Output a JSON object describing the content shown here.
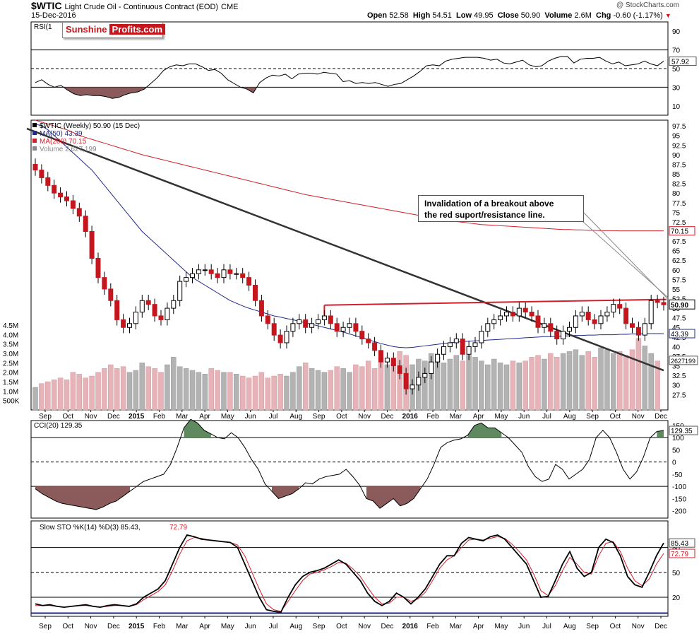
{
  "header": {
    "title": "$WTIC",
    "subtitle": "Light Crude Oil - Continuous Contract (EOD)",
    "exchange": "CME",
    "date": "15-Dec-2016",
    "copyright": "@ StockCharts.com",
    "open_label": "Open",
    "open": "52.58",
    "high_label": "High",
    "high": "54.51",
    "low_label": "Low",
    "low": "49.95",
    "close_label": "Close",
    "close": "50.90",
    "volume_label": "Volume",
    "volume": "2.6M",
    "chg_label": "Chg",
    "chg": "-0.60 (-1.17%)"
  },
  "logo": {
    "part1": "Sunshine",
    "part2": "Profits.com"
  },
  "annotation": {
    "line1": "Invalidation of  a breakout above",
    "line2": "the red suport/resistance line."
  },
  "colors": {
    "up": "#ffffff",
    "down": "#c4161c",
    "ma50": "#1f2a8a",
    "ma200": "#d11f2b",
    "trend": "#333333",
    "resistance": "#d11f2b",
    "fill_pos": "#5f8a5f",
    "fill_neg": "#8b5a5a",
    "vol_up": "#b3b3b3",
    "vol_down": "#e6b3b8"
  },
  "chart_data": [
    {
      "panel": "rsi",
      "type": "line",
      "title": "RSI(14) 57.92",
      "title_short": "RSI(1",
      "ylim": [
        0,
        100
      ],
      "yticks": [
        10,
        30,
        50,
        70,
        90
      ],
      "lines": [
        30,
        50,
        70
      ],
      "last": "57.92",
      "values": [
        35,
        38,
        33,
        30,
        32,
        27,
        23,
        21,
        22,
        21,
        21,
        20,
        18,
        19,
        22,
        24,
        25,
        28,
        34,
        40,
        48,
        52,
        54,
        53,
        55,
        55,
        52,
        48,
        49,
        45,
        38,
        34,
        30,
        28,
        24,
        35,
        40,
        43,
        42,
        44,
        39,
        44,
        45,
        45,
        44,
        46,
        45,
        44,
        36,
        37,
        34,
        35,
        34,
        35,
        33,
        31,
        33,
        34,
        38,
        42,
        47,
        53,
        54,
        53,
        58,
        60,
        61,
        62,
        62,
        62,
        61,
        59,
        60,
        56,
        55,
        57,
        59,
        54,
        52,
        53,
        58,
        61,
        63,
        63,
        56,
        60,
        61,
        61,
        62,
        58,
        55,
        57,
        53,
        54,
        55,
        58,
        55,
        53,
        57.92
      ]
    },
    {
      "panel": "price",
      "type": "candlestick",
      "title": "$WTIC (Weekly) 50.90 (15 Dec)",
      "ylim": [
        23.5,
        99
      ],
      "yticks": [
        27.5,
        30,
        32.5,
        35,
        37.5,
        40,
        42.5,
        45,
        47.5,
        50,
        52.5,
        55,
        57.5,
        60,
        62.5,
        65,
        67.5,
        70,
        72.5,
        75,
        77.5,
        80,
        82.5,
        85,
        87.5,
        90,
        92.5,
        95,
        97.5
      ],
      "legend": [
        {
          "label": "$WTIC (Weekly) 50.90 (15 Dec)",
          "color": "#000000"
        },
        {
          "label": "MA(50) 43.39",
          "color": "#1f2a8a"
        },
        {
          "label": "MA(200) 70.15",
          "color": "#d11f2b"
        },
        {
          "label": "Volume 2,627,199",
          "color": "#888888"
        }
      ],
      "last_close_label": "50.90",
      "ma50_label": "43.39",
      "ma200_label": "70.15",
      "closes": [
        86,
        84,
        82,
        80,
        79,
        78,
        76,
        74,
        70,
        63,
        58,
        55,
        52,
        47,
        45,
        46,
        49,
        52,
        51,
        48,
        47,
        50,
        52,
        57,
        58,
        59,
        60,
        60,
        59,
        58,
        60,
        59,
        59,
        58,
        56,
        52,
        48,
        46,
        43,
        41,
        44,
        46,
        47,
        45,
        46,
        47,
        48,
        46,
        44,
        45,
        46,
        44,
        42,
        41,
        39,
        36,
        37,
        35,
        33,
        29,
        30,
        32,
        33,
        36,
        38,
        40,
        41,
        42,
        38,
        40,
        41,
        44,
        46,
        47,
        48,
        49,
        48,
        50,
        49,
        48,
        45,
        46,
        44,
        42,
        44,
        45,
        48,
        49,
        47,
        46,
        48,
        49,
        51,
        50,
        46,
        45,
        43,
        46,
        52,
        51.5,
        50.9
      ],
      "ma50": [
        98,
        97.5,
        96.5,
        95,
        93.5,
        92,
        90.5,
        89,
        87.5,
        86,
        84,
        82,
        80,
        78,
        76,
        74,
        72,
        70,
        68.5,
        67,
        65.5,
        64,
        62.5,
        61,
        59.5,
        58,
        57,
        56,
        55,
        54,
        53,
        52,
        51.3,
        50.6,
        50,
        49.5,
        49,
        48.5,
        48,
        47.7,
        47.3,
        47,
        46.6,
        46.2,
        45.8,
        45.4,
        45,
        44.6,
        44.2,
        43.8,
        43.3,
        42.8,
        42.3,
        41.8,
        41.3,
        40.8,
        40.4,
        40,
        39.8,
        39.7,
        39.8,
        40,
        40.2,
        40.4,
        40.6,
        40.8,
        41,
        41.2,
        41.3,
        41.4,
        41.5,
        41.6,
        41.7,
        41.8,
        41.9,
        42,
        42.1,
        42.2,
        42.3,
        42.4,
        42.5,
        42.6,
        42.6,
        42.7,
        42.8,
        42.8,
        42.9,
        42.9,
        43,
        43,
        43.1,
        43.1,
        43.1,
        43.2,
        43.2,
        43.3,
        43.3,
        43.39,
        43.39,
        43.39,
        43.39
      ],
      "ma200": [
        99,
        98.5,
        98,
        97.5,
        97,
        96.5,
        95.8,
        95,
        94.5,
        94,
        93.5,
        93,
        92.5,
        92,
        91.5,
        91,
        90.5,
        90,
        89.6,
        89.2,
        88.8,
        88.4,
        88,
        87.6,
        87.2,
        86.8,
        86.4,
        86,
        85.6,
        85.2,
        84.8,
        84.4,
        84,
        83.6,
        83.2,
        82.8,
        82.4,
        82,
        81.6,
        81.2,
        80.8,
        80.4,
        80,
        79.6,
        79.3,
        79,
        78.7,
        78.4,
        78.1,
        77.8,
        77.5,
        77.2,
        76.9,
        76.6,
        76.3,
        76,
        75.7,
        75.4,
        75.1,
        74.8,
        74.5,
        74.2,
        73.9,
        73.6,
        73.3,
        73,
        72.8,
        72.6,
        72.4,
        72.2,
        72,
        71.8,
        71.7,
        71.6,
        71.5,
        71.4,
        71.3,
        71.2,
        71.1,
        71,
        70.9,
        70.8,
        70.7,
        70.6,
        70.5,
        70.5,
        70.4,
        70.4,
        70.3,
        70.3,
        70.2,
        70.2,
        70.2,
        70.15,
        70.15,
        70.15,
        70.15,
        70.15,
        70.15,
        70.15,
        70.15
      ]
    },
    {
      "panel": "volume",
      "type": "bar",
      "ylim": [
        0,
        4.5
      ],
      "unit": "M",
      "ytick_labels": [
        "500K",
        "1.0M",
        "1.5M",
        "2.0M",
        "2.5M",
        "3.0M",
        "3.5M",
        "4.0M",
        "4.5M"
      ],
      "last_label": "2627199",
      "values": [
        1.2,
        1.4,
        1.5,
        1.6,
        1.7,
        1.6,
        2.0,
        1.9,
        1.7,
        1.8,
        2.0,
        2.2,
        2.4,
        2.2,
        2.3,
        2.0,
        2.1,
        2.5,
        2.3,
        2.2,
        2.0,
        2.4,
        2.8,
        2.3,
        2.2,
        2.1,
        2.0,
        1.9,
        2.2,
        2.1,
        2.0,
        2.0,
        1.9,
        1.8,
        1.7,
        1.8,
        2.0,
        1.7,
        1.8,
        1.9,
        1.8,
        2.0,
        2.3,
        2.5,
        2.2,
        2.1,
        2.0,
        2.1,
        2.3,
        2.2,
        2.0,
        2.4,
        2.3,
        2.6,
        2.2,
        2.8,
        2.4,
        2.7,
        3.1,
        2.9,
        2.4,
        2.7,
        2.6,
        3.0,
        2.8,
        2.5,
        2.7,
        2.9,
        2.6,
        2.9,
        2.8,
        2.6,
        2.4,
        2.7,
        2.5,
        2.4,
        2.6,
        2.5,
        2.6,
        2.8,
        2.9,
        2.7,
        3.0,
        2.8,
        3.0,
        3.1,
        3.2,
        2.9,
        3.1,
        2.8,
        3.3,
        3.2,
        3.0,
        3.1,
        2.9,
        3.2,
        3.8,
        3.4,
        3.0,
        2.6
      ]
    },
    {
      "panel": "cci",
      "type": "line",
      "title": "CCI(20) 129.35",
      "ylim": [
        -230,
        170
      ],
      "yticks": [
        -200,
        -150,
        -100,
        -50,
        0,
        50,
        100,
        150
      ],
      "lines": [
        -100,
        0,
        100
      ],
      "last": "129.35",
      "values": [
        -110,
        -130,
        -145,
        -160,
        -170,
        -175,
        -180,
        -185,
        -190,
        -195,
        -185,
        -170,
        -160,
        -140,
        -120,
        -100,
        -80,
        -70,
        -60,
        -50,
        -10,
        60,
        140,
        175,
        160,
        130,
        115,
        100,
        95,
        120,
        100,
        60,
        10,
        -30,
        -90,
        -120,
        -150,
        -140,
        -130,
        -110,
        -85,
        -90,
        -70,
        -60,
        -55,
        -50,
        -30,
        -60,
        -95,
        -150,
        -160,
        -190,
        -170,
        -150,
        -180,
        -170,
        -150,
        -110,
        -70,
        -10,
        60,
        80,
        90,
        95,
        110,
        150,
        160,
        140,
        140,
        120,
        100,
        70,
        40,
        -20,
        -60,
        -80,
        -70,
        -10,
        -30,
        -70,
        -50,
        -30,
        10,
        100,
        130,
        100,
        40,
        -30,
        -70,
        -40,
        20,
        100,
        125,
        129.35
      ]
    },
    {
      "panel": "sto",
      "type": "line",
      "title": "Slow STO %K(14) %D(3) 85.43, 72.79",
      "title_main": "Slow STO %K(14) %D(3) 85.43,",
      "title_d": "72.79",
      "ylim": [
        -3,
        112
      ],
      "yticks": [
        20,
        50,
        80
      ],
      "lines": [
        20,
        50,
        80
      ],
      "last_k": "85.43",
      "last_d": "72.79",
      "k": [
        12,
        10,
        11,
        9,
        8,
        9,
        10,
        11,
        9,
        8,
        10,
        11,
        10,
        9,
        12,
        20,
        25,
        30,
        40,
        60,
        80,
        95,
        93,
        90,
        89,
        88,
        87,
        86,
        80,
        60,
        40,
        20,
        5,
        3,
        2,
        20,
        35,
        45,
        50,
        52,
        55,
        60,
        65,
        60,
        50,
        40,
        25,
        15,
        10,
        15,
        25,
        20,
        12,
        20,
        30,
        45,
        60,
        70,
        70,
        85,
        92,
        90,
        88,
        93,
        95,
        90,
        80,
        70,
        60,
        40,
        20,
        21,
        40,
        60,
        75,
        55,
        45,
        50,
        80,
        90,
        86,
        70,
        45,
        35,
        32,
        50,
        70,
        85.43
      ],
      "d": [
        10,
        10,
        10,
        9,
        8,
        9,
        10,
        10,
        9,
        8,
        9,
        10,
        10,
        9,
        11,
        17,
        22,
        27,
        35,
        52,
        72,
        88,
        92,
        91,
        89,
        88,
        87,
        86,
        83,
        70,
        50,
        30,
        12,
        5,
        3,
        15,
        28,
        40,
        48,
        50,
        53,
        57,
        62,
        61,
        54,
        45,
        32,
        20,
        12,
        13,
        20,
        20,
        15,
        18,
        26,
        40,
        55,
        65,
        70,
        80,
        89,
        90,
        89,
        91,
        93,
        91,
        84,
        75,
        65,
        48,
        28,
        22,
        34,
        52,
        68,
        60,
        50,
        48,
        70,
        85,
        87,
        75,
        55,
        40,
        34,
        42,
        60,
        72.79
      ]
    }
  ],
  "xaxis": {
    "labels": [
      "Sep",
      "Oct",
      "Nov",
      "Dec",
      "2015",
      "Feb",
      "Mar",
      "Apr",
      "May",
      "Jun",
      "Jul",
      "Aug",
      "Sep",
      "Oct",
      "Nov",
      "Dec",
      "2016",
      "Feb",
      "Mar",
      "Apr",
      "May",
      "Jun",
      "Jul",
      "Aug",
      "Sep",
      "Oct",
      "Nov",
      "Dec"
    ]
  }
}
